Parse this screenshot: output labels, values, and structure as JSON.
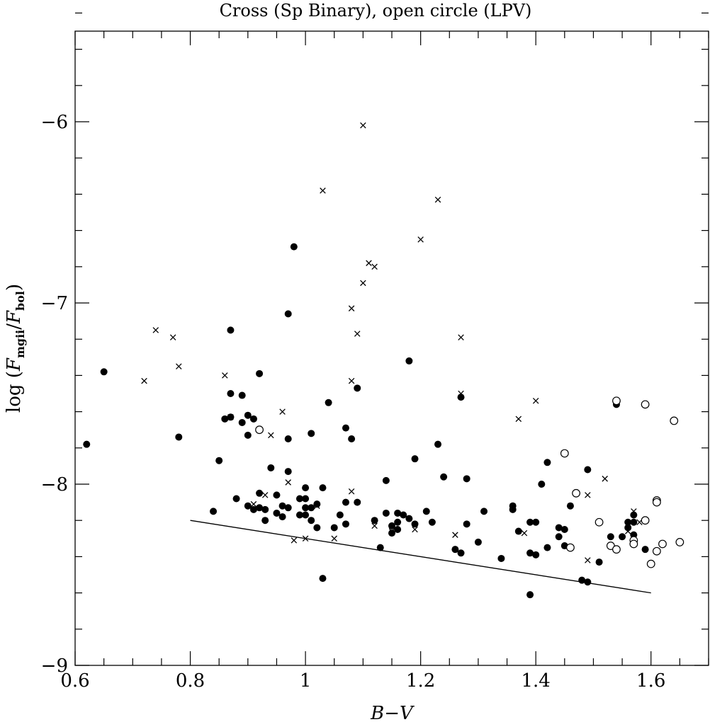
{
  "chart_data": {
    "type": "scatter",
    "title": "Cross (Sp Binary), open circle (LPV)",
    "xlabel": "B−V",
    "ylabel": {
      "prefix": "log (",
      "F_mgii_base": "F",
      "F_mgii_sub": "mgii",
      "slash": "/",
      "F_bol_base": "F",
      "F_bol_sub": "bol",
      "suffix": ")"
    },
    "xlim": [
      0.6,
      1.7
    ],
    "ylim": [
      -9.0,
      -5.5
    ],
    "x_ticks": [
      {
        "value": 0.6,
        "label": "0.6"
      },
      {
        "value": 0.8,
        "label": "0.8"
      },
      {
        "value": 1.0,
        "label": "1"
      },
      {
        "value": 1.2,
        "label": "1.2"
      },
      {
        "value": 1.4,
        "label": "1.4"
      },
      {
        "value": 1.6,
        "label": "1.6"
      }
    ],
    "y_ticks": [
      {
        "value": -9,
        "label": "−9"
      },
      {
        "value": -8,
        "label": "−8"
      },
      {
        "value": -7,
        "label": "−7"
      },
      {
        "value": -6,
        "label": "−6"
      }
    ],
    "x_minor_step": 0.05,
    "y_minor_step": 0.2,
    "grid": false,
    "legend": "none",
    "series": [
      {
        "marker": "filled-circle",
        "points": [
          [
            0.62,
            -7.78
          ],
          [
            0.65,
            -7.38
          ],
          [
            0.78,
            -7.74
          ],
          [
            0.84,
            -8.15
          ],
          [
            0.85,
            -7.87
          ],
          [
            0.86,
            -7.64
          ],
          [
            0.87,
            -7.5
          ],
          [
            0.87,
            -7.63
          ],
          [
            0.87,
            -7.15
          ],
          [
            0.88,
            -8.08
          ],
          [
            0.89,
            -7.51
          ],
          [
            0.89,
            -7.66
          ],
          [
            0.9,
            -7.62
          ],
          [
            0.9,
            -7.73
          ],
          [
            0.9,
            -8.12
          ],
          [
            0.91,
            -7.64
          ],
          [
            0.91,
            -8.14
          ],
          [
            0.92,
            -8.13
          ],
          [
            0.92,
            -8.05
          ],
          [
            0.92,
            -7.39
          ],
          [
            0.93,
            -8.14
          ],
          [
            0.93,
            -8.2
          ],
          [
            0.94,
            -7.91
          ],
          [
            0.95,
            -8.06
          ],
          [
            0.95,
            -8.16
          ],
          [
            0.96,
            -8.12
          ],
          [
            0.96,
            -8.18
          ],
          [
            0.97,
            -7.93
          ],
          [
            0.97,
            -7.75
          ],
          [
            0.97,
            -8.13
          ],
          [
            0.97,
            -7.06
          ],
          [
            0.98,
            -6.69
          ],
          [
            0.99,
            -8.08
          ],
          [
            0.99,
            -8.17
          ],
          [
            1.0,
            -8.02
          ],
          [
            1.0,
            -8.08
          ],
          [
            1.0,
            -8.13
          ],
          [
            1.0,
            -8.17
          ],
          [
            1.01,
            -7.72
          ],
          [
            1.01,
            -8.13
          ],
          [
            1.01,
            -8.2
          ],
          [
            1.02,
            -8.11
          ],
          [
            1.02,
            -8.24
          ],
          [
            1.03,
            -8.02
          ],
          [
            1.03,
            -8.52
          ],
          [
            1.04,
            -7.55
          ],
          [
            1.05,
            -8.24
          ],
          [
            1.06,
            -8.17
          ],
          [
            1.07,
            -7.69
          ],
          [
            1.07,
            -8.1
          ],
          [
            1.07,
            -8.22
          ],
          [
            1.08,
            -7.75
          ],
          [
            1.09,
            -8.1
          ],
          [
            1.09,
            -7.47
          ],
          [
            1.12,
            -8.2
          ],
          [
            1.13,
            -8.35
          ],
          [
            1.14,
            -7.98
          ],
          [
            1.14,
            -8.16
          ],
          [
            1.15,
            -8.23
          ],
          [
            1.15,
            -8.27
          ],
          [
            1.16,
            -8.16
          ],
          [
            1.16,
            -8.21
          ],
          [
            1.16,
            -8.25
          ],
          [
            1.17,
            -8.17
          ],
          [
            1.18,
            -7.32
          ],
          [
            1.18,
            -8.19
          ],
          [
            1.19,
            -7.86
          ],
          [
            1.19,
            -8.22
          ],
          [
            1.21,
            -8.15
          ],
          [
            1.22,
            -8.21
          ],
          [
            1.23,
            -7.78
          ],
          [
            1.24,
            -7.96
          ],
          [
            1.26,
            -8.36
          ],
          [
            1.27,
            -8.38
          ],
          [
            1.27,
            -7.52
          ],
          [
            1.28,
            -7.97
          ],
          [
            1.28,
            -8.22
          ],
          [
            1.3,
            -8.32
          ],
          [
            1.31,
            -8.15
          ],
          [
            1.34,
            -8.41
          ],
          [
            1.36,
            -8.12
          ],
          [
            1.36,
            -8.14
          ],
          [
            1.37,
            -8.26
          ],
          [
            1.39,
            -8.21
          ],
          [
            1.39,
            -8.38
          ],
          [
            1.39,
            -8.61
          ],
          [
            1.4,
            -8.21
          ],
          [
            1.4,
            -8.39
          ],
          [
            1.41,
            -8.0
          ],
          [
            1.42,
            -7.88
          ],
          [
            1.42,
            -8.35
          ],
          [
            1.44,
            -8.24
          ],
          [
            1.44,
            -8.29
          ],
          [
            1.45,
            -8.25
          ],
          [
            1.45,
            -8.34
          ],
          [
            1.46,
            -8.12
          ],
          [
            1.48,
            -8.53
          ],
          [
            1.49,
            -8.54
          ],
          [
            1.49,
            -7.92
          ],
          [
            1.51,
            -8.43
          ],
          [
            1.53,
            -8.29
          ],
          [
            1.54,
            -7.56
          ],
          [
            1.55,
            -8.29
          ],
          [
            1.56,
            -8.21
          ],
          [
            1.56,
            -8.24
          ],
          [
            1.57,
            -8.17
          ],
          [
            1.57,
            -8.21
          ],
          [
            1.57,
            -8.28
          ],
          [
            1.59,
            -8.36
          ]
        ]
      },
      {
        "marker": "cross",
        "points": [
          [
            0.72,
            -7.43
          ],
          [
            0.74,
            -7.15
          ],
          [
            0.77,
            -7.19
          ],
          [
            0.78,
            -7.35
          ],
          [
            0.86,
            -7.4
          ],
          [
            0.87,
            -7.63
          ],
          [
            0.91,
            -8.11
          ],
          [
            0.93,
            -8.06
          ],
          [
            0.94,
            -7.73
          ],
          [
            0.96,
            -7.6
          ],
          [
            0.97,
            -7.99
          ],
          [
            0.98,
            -8.31
          ],
          [
            1.0,
            -8.3
          ],
          [
            1.02,
            -8.12
          ],
          [
            1.03,
            -6.38
          ],
          [
            1.05,
            -8.3
          ],
          [
            1.08,
            -7.03
          ],
          [
            1.08,
            -7.43
          ],
          [
            1.08,
            -8.04
          ],
          [
            1.09,
            -7.17
          ],
          [
            1.1,
            -6.89
          ],
          [
            1.1,
            -6.02
          ],
          [
            1.11,
            -6.78
          ],
          [
            1.12,
            -6.8
          ],
          [
            1.12,
            -8.23
          ],
          [
            1.15,
            -8.26
          ],
          [
            1.19,
            -8.25
          ],
          [
            1.2,
            -6.65
          ],
          [
            1.23,
            -6.43
          ],
          [
            1.26,
            -8.28
          ],
          [
            1.27,
            -7.19
          ],
          [
            1.27,
            -7.5
          ],
          [
            1.37,
            -7.64
          ],
          [
            1.38,
            -8.27
          ],
          [
            1.4,
            -7.54
          ],
          [
            1.49,
            -8.06
          ],
          [
            1.49,
            -8.42
          ],
          [
            1.52,
            -7.97
          ],
          [
            1.56,
            -8.26
          ],
          [
            1.57,
            -8.15
          ],
          [
            1.58,
            -8.21
          ]
        ]
      },
      {
        "marker": "open-circle",
        "points": [
          [
            0.92,
            -7.7
          ],
          [
            1.45,
            -7.83
          ],
          [
            1.46,
            -8.35
          ],
          [
            1.47,
            -8.05
          ],
          [
            1.51,
            -8.21
          ],
          [
            1.53,
            -8.34
          ],
          [
            1.54,
            -7.54
          ],
          [
            1.54,
            -8.36
          ],
          [
            1.57,
            -8.31
          ],
          [
            1.57,
            -8.33
          ],
          [
            1.59,
            -7.56
          ],
          [
            1.59,
            -8.2
          ],
          [
            1.6,
            -8.44
          ],
          [
            1.61,
            -8.09
          ],
          [
            1.61,
            -8.1
          ],
          [
            1.61,
            -8.37
          ],
          [
            1.62,
            -8.33
          ],
          [
            1.64,
            -7.65
          ],
          [
            1.65,
            -8.32
          ]
        ]
      }
    ],
    "reference_line": {
      "x": [
        0.8,
        1.6
      ],
      "y": [
        -8.2,
        -8.6
      ]
    }
  }
}
